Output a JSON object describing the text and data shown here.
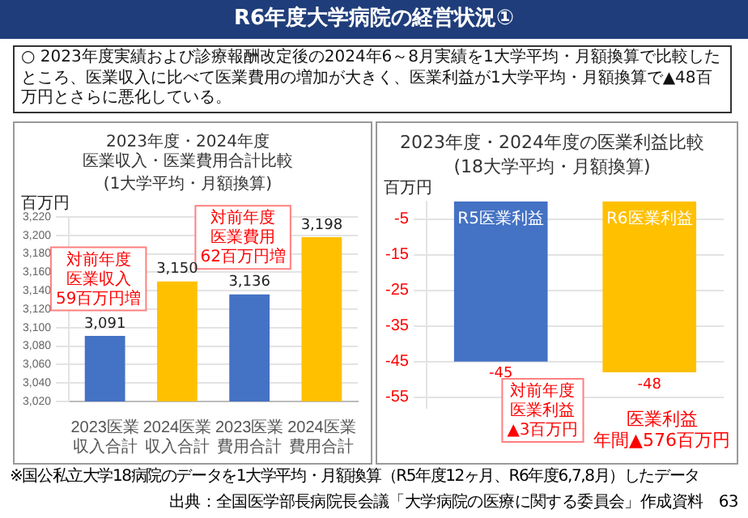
{
  "chart_data": [
    {
      "type": "bar",
      "title": "2023年度・2024年度医業収入・医業費用合計比較",
      "subtitle": "(1大学平均・月額換算)",
      "ylabel": "百万円",
      "categories": [
        "2023医業収入合計",
        "2024医業収入合計",
        "2023医業費用合計",
        "2024医業費用合計"
      ],
      "values": [
        3091,
        3150,
        3136,
        3198
      ],
      "value_labels": [
        "3,091",
        "3,150",
        "3,136",
        "3,198"
      ],
      "colors": [
        "#4472c4",
        "#ffc000",
        "#4472c4",
        "#ffc000"
      ],
      "ylim": [
        3020,
        3220
      ],
      "yticks": [
        {
          "value": 3020,
          "label": "3,020"
        },
        {
          "value": 3040,
          "label": "3,040"
        },
        {
          "value": 3060,
          "label": "3,060"
        },
        {
          "value": 3080,
          "label": "3,080"
        },
        {
          "value": 3100,
          "label": "3,100"
        },
        {
          "value": 3120,
          "label": "3,120"
        },
        {
          "value": 3140,
          "label": "3,140"
        },
        {
          "value": 3160,
          "label": "3,160"
        },
        {
          "value": 3180,
          "label": "3,180"
        },
        {
          "value": 3200,
          "label": "3,200"
        },
        {
          "value": 3220,
          "label": "3,220"
        }
      ],
      "grid": "y",
      "annotations": [
        "R6年度大学病院の経営状況①",
        "○ 2023年度実績および診療報酬改定後の2024年6～8月実績を1大学平均・月額換算で比較したところ、医業収入に比べて医業費用の増加が大きく、医業利益が1大学平均・月額換算で▲48百万円とさらに悪化している。",
        "対前年度医業収入59百万円増",
        "対前年度医業費用62百万円増"
      ]
    },
    {
      "type": "bar",
      "title": "2023年度・2024年度の医業利益比較",
      "subtitle": "(18大学平均・月額換算)",
      "ylabel": "百万円",
      "categories": [
        "R5医業利益",
        "R6医業利益"
      ],
      "values": [
        -45,
        -48
      ],
      "colors": [
        "#4472c4",
        "#ffc000"
      ],
      "ylim": [
        -58,
        0
      ],
      "yticks": [
        -5,
        -15,
        -25,
        -35,
        -45,
        -55
      ],
      "grid": "y",
      "data_labels": true,
      "tick_labels": "y",
      "annotations": [
        "対前年度医業利益▲3百万円",
        "医業利益年間▲576百万円",
        "※国公私立大学18病院のデータを1大学平均・月額換算（R5年度12ヶ月、R6年度6,7,8月）したデータ",
        "出典：全国医学部長病院長会議「大学病院の医療に関する委員会」作成資料　63"
      ]
    }
  ]
}
